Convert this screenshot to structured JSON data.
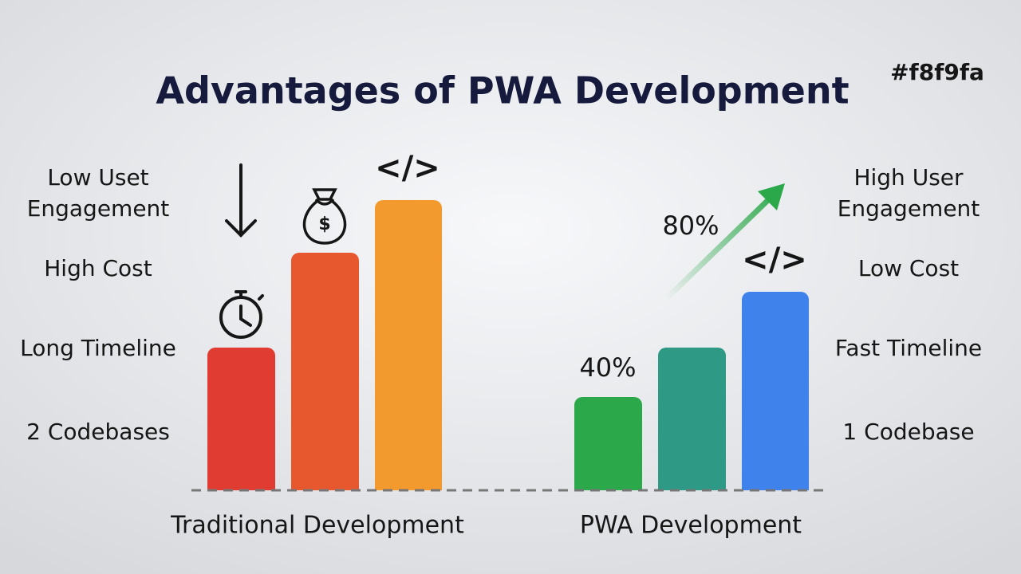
{
  "title": "Advantages of PWA Development",
  "tag": "#f8f9fa",
  "traditional": {
    "label": "Traditional Development",
    "features": [
      [
        "Low Uset",
        "Engagement"
      ],
      [
        "High Cost"
      ],
      [
        "Long Timeline"
      ],
      [
        "2 Codebases"
      ]
    ],
    "code_icon": "</>"
  },
  "pwa": {
    "label": "PWA Development",
    "features": [
      [
        "High User",
        "Engagement"
      ],
      [
        "Low Cost"
      ],
      [
        "Fast Timeline"
      ],
      [
        "1 Codebase"
      ]
    ],
    "code_icon": "</>",
    "percent_low": "40%",
    "percent_high": "80%"
  }
}
